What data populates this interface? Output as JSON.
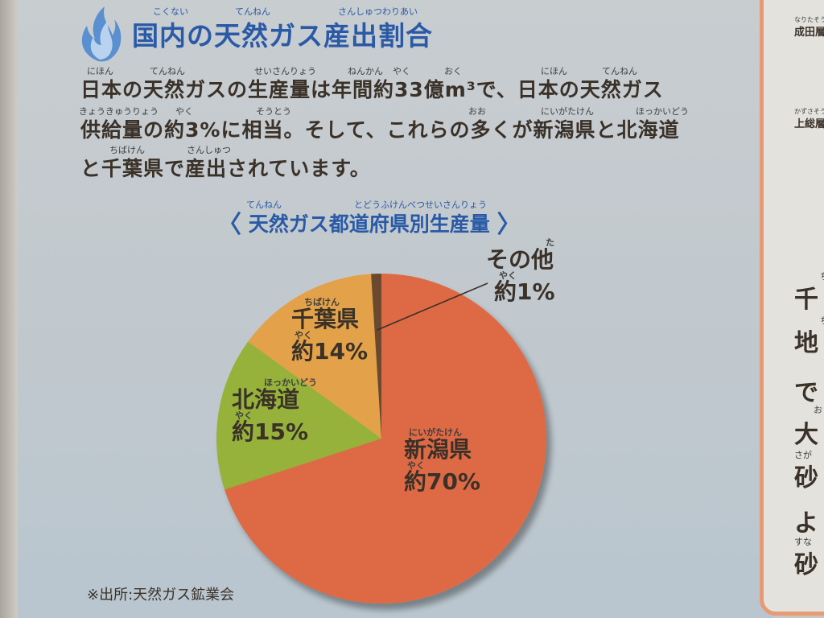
{
  "header": {
    "title": "国内の天然ガス産出割合",
    "title_ruby": [
      "こくない",
      "てんねん",
      "さんしゅつわりあい"
    ]
  },
  "intro": {
    "lines": [
      "日本の天然ガスの生産量は年間約33億m³で、日本の天然ガス",
      "供給量の約3%に相当。そして、これらの多くが新潟県と北海道",
      "と千葉県で産出されています。"
    ],
    "ruby_line1": [
      "にほん",
      "てんねん",
      "せいさんりょう",
      "ねんかん",
      "やく",
      "おく",
      "にほん",
      "てんねん"
    ],
    "ruby_line2": [
      "きょうきゅうりょう",
      "やく",
      "そうとう",
      "おお",
      "にいがたけん",
      "ほっかいどう"
    ],
    "ruby_line3": [
      "ちばけん",
      "さんしゅつ"
    ]
  },
  "chart_data": {
    "type": "pie",
    "title": "天然ガス都道府県別生産量",
    "title_ruby": [
      "てんねん",
      "とどうふけんべつせいさんりょう"
    ],
    "slices": [
      {
        "label": "新潟県",
        "ruby": "にいがたけん",
        "value_text": "約70%",
        "value": 70,
        "color": "#de6a45"
      },
      {
        "label": "北海道",
        "ruby": "ほっかいどう",
        "value_text": "約15%",
        "value": 15,
        "color": "#96b23a"
      },
      {
        "label": "千葉県",
        "ruby": "ちばけん",
        "value_text": "約14%",
        "value": 14,
        "color": "#e3a24a"
      },
      {
        "label": "その他",
        "ruby": "た",
        "value_text": "約1%",
        "value": 1,
        "color": "#6b4a2f"
      }
    ],
    "yaku_ruby": "やく"
  },
  "footer": {
    "source": "※出所:天然ガス鉱業会"
  },
  "right_panel": {
    "small_items": [
      {
        "ruby": "なりたそう",
        "text": "成田層"
      },
      {
        "ruby": "かずさそう",
        "text": "上総層"
      }
    ],
    "big_chars": [
      "千",
      "地",
      "で",
      "大",
      "砂",
      "よ",
      "砂"
    ],
    "small_ruby": [
      "ち",
      "ちそ",
      "お",
      "さが",
      "すな"
    ]
  },
  "colors": {
    "accent_blue": "#2a5aa6",
    "text_brown": "#3a3128",
    "border_orange": "#e79a74"
  }
}
